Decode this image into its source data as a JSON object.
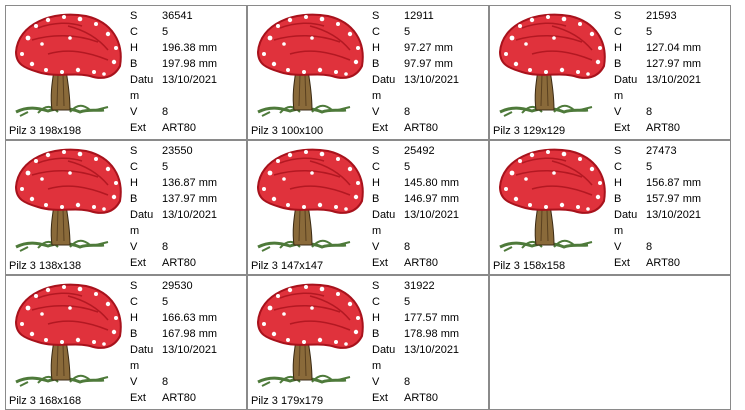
{
  "colors": {
    "cap": "#e0323c",
    "cap_dark": "#a8121c",
    "stem": "#8a6a3a",
    "grass": "#4e7a3a",
    "border": "#8a8a8a"
  },
  "icon": "mushroom-embroidery-thumbnail",
  "labels": {
    "s": "S",
    "c": "C",
    "h": "H",
    "b": "B",
    "datum": "Datum",
    "v": "V",
    "ext": "Ext"
  },
  "designs": [
    {
      "name": "Pilz 3 198x198",
      "s": "36541",
      "c": "5",
      "h": "196.38 mm",
      "b": "197.98 mm",
      "date": "13/10/2021",
      "v": "8",
      "ext": "ART80"
    },
    {
      "name": "Pilz 3 100x100",
      "s": "12911",
      "c": "5",
      "h": "97.27 mm",
      "b": "97.97 mm",
      "date": "13/10/2021",
      "v": "8",
      "ext": "ART80"
    },
    {
      "name": "Pilz 3 129x129",
      "s": "21593",
      "c": "5",
      "h": "127.04 mm",
      "b": "127.97 mm",
      "date": "13/10/2021",
      "v": "8",
      "ext": "ART80"
    },
    {
      "name": "Pilz 3 138x138",
      "s": "23550",
      "c": "5",
      "h": "136.87 mm",
      "b": "137.97 mm",
      "date": "13/10/2021",
      "v": "8",
      "ext": "ART80"
    },
    {
      "name": "Pilz 3 147x147",
      "s": "25492",
      "c": "5",
      "h": "145.80 mm",
      "b": "146.97 mm",
      "date": "13/10/2021",
      "v": "8",
      "ext": "ART80"
    },
    {
      "name": "Pilz 3 158x158",
      "s": "27473",
      "c": "5",
      "h": "156.87 mm",
      "b": "157.97 mm",
      "date": "13/10/2021",
      "v": "8",
      "ext": "ART80"
    },
    {
      "name": "Pilz 3 168x168",
      "s": "29530",
      "c": "5",
      "h": "166.63 mm",
      "b": "167.98 mm",
      "date": "13/10/2021",
      "v": "8",
      "ext": "ART80"
    },
    {
      "name": "Pilz 3 179x179",
      "s": "31922",
      "c": "5",
      "h": "177.57 mm",
      "b": "178.98 mm",
      "date": "13/10/2021",
      "v": "8",
      "ext": "ART80"
    }
  ]
}
